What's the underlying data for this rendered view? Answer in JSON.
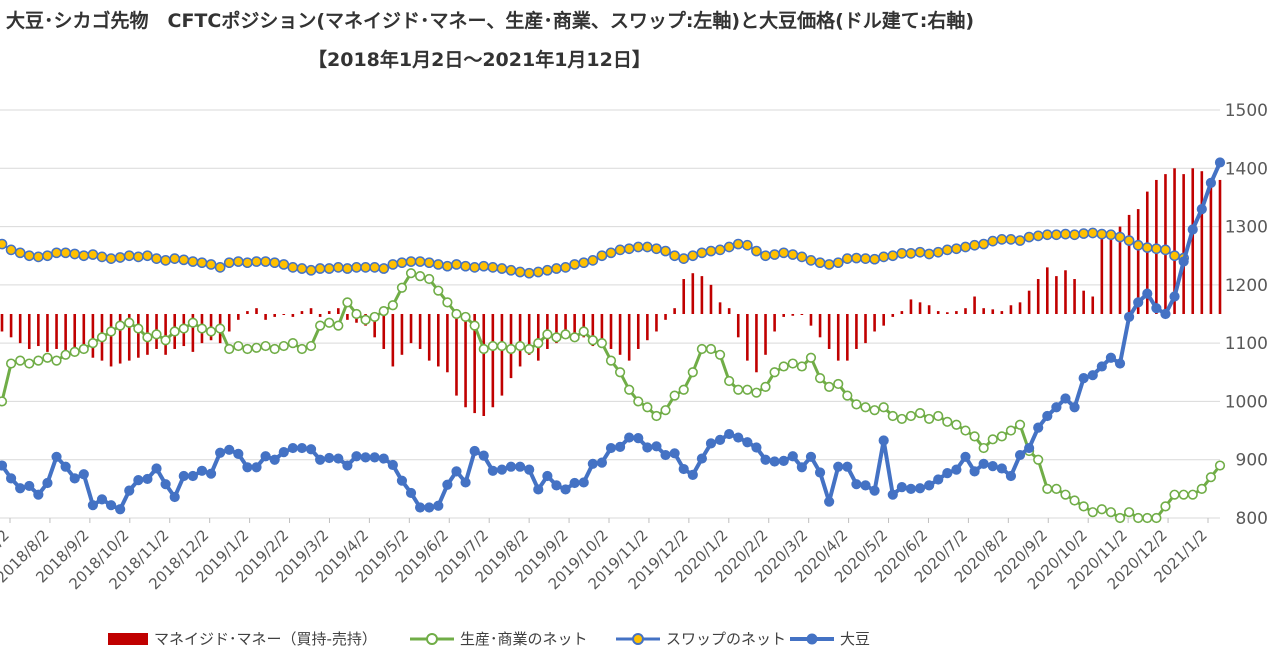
{
  "chart_data": {
    "type": "combo",
    "title": "大豆･シカゴ先物　CFTCポジション(マネイジド･マネー、生産･商業、スワップ:左軸)と大豆価格(ドル建て:右軸)",
    "subtitle": "【2018年1月2日～2021年1月12日】",
    "right_axis": {
      "ylim": [
        800,
        1500
      ],
      "ticks": [
        "800",
        "900",
        "1000",
        "1100",
        "1200",
        "1300",
        "1400",
        "1500"
      ]
    },
    "left_axis": {
      "ylim": [
        -350000,
        350000
      ],
      "note": "left axis labels not visible in crop"
    },
    "x_tick_labels": [
      "2018/7/2",
      "2018/8/2",
      "2018/9/2",
      "2018/10/2",
      "2018/11/2",
      "2018/12/2",
      "2019/1/2",
      "2019/2/2",
      "2019/3/2",
      "2019/4/2",
      "2019/5/2",
      "2019/6/2",
      "2019/7/2",
      "2019/8/2",
      "2019/9/2",
      "2019/10/2",
      "2019/11/2",
      "2019/12/2",
      "2020/1/2",
      "2020/2/2",
      "2020/3/2",
      "2020/4/2",
      "2020/5/2",
      "2020/6/2",
      "2020/7/2",
      "2020/8/2",
      "2020/9/2",
      "2020/10/2",
      "2020/11/2",
      "2020/12/2",
      "2021/1/2"
    ],
    "series": [
      {
        "name": "マネイジド･マネー（買持-売持）",
        "type": "bar",
        "axis": "left",
        "color": "#c00000",
        "values": [
          -30000,
          -40000,
          -50000,
          -60000,
          -55000,
          -65000,
          -60000,
          -70000,
          -65000,
          -60000,
          -75000,
          -80000,
          -90000,
          -85000,
          -80000,
          -75000,
          -70000,
          -60000,
          -70000,
          -60000,
          -55000,
          -65000,
          -50000,
          -45000,
          -50000,
          -30000,
          -10000,
          5000,
          10000,
          -10000,
          -5000,
          0,
          -5000,
          5000,
          10000,
          -5000,
          5000,
          10000,
          -10000,
          -15000,
          -20000,
          -40000,
          -60000,
          -90000,
          -70000,
          -50000,
          -60000,
          -80000,
          -90000,
          -100000,
          -140000,
          -160000,
          -170000,
          -175000,
          -160000,
          -140000,
          -110000,
          -90000,
          -70000,
          -80000,
          -60000,
          -50000,
          -40000,
          -35000,
          -40000,
          -55000,
          -45000,
          -60000,
          -70000,
          -80000,
          -60000,
          -45000,
          -30000,
          -10000,
          10000,
          60000,
          70000,
          65000,
          50000,
          20000,
          10000,
          -40000,
          -80000,
          -100000,
          -70000,
          -30000,
          -5000,
          -3000,
          0,
          -20000,
          -40000,
          -60000,
          -80000,
          -80000,
          -60000,
          -50000,
          -30000,
          -20000,
          -5000,
          5000,
          25000,
          20000,
          15000,
          5000,
          3000,
          5000,
          10000,
          30000,
          10000,
          8000,
          5000,
          15000,
          20000,
          40000,
          60000,
          80000,
          65000,
          75000,
          60000,
          40000,
          30000,
          140000,
          140000,
          150000,
          170000,
          180000,
          210000,
          230000,
          240000,
          250000,
          240000,
          250000,
          245000,
          220000,
          230000,
          220000,
          210000,
          200000,
          205000,
          195000,
          200000,
          190000,
          150000,
          130000
        ]
      },
      {
        "name": "生産･商業のネット",
        "type": "line",
        "axis": "left",
        "color": "#70ad47",
        "values": [
          -150000,
          -85000,
          -80000,
          -85000,
          -80000,
          -75000,
          -80000,
          -70000,
          -65000,
          -60000,
          -50000,
          -40000,
          -30000,
          -20000,
          -15000,
          -25000,
          -40000,
          -35000,
          -45000,
          -30000,
          -25000,
          -15000,
          -25000,
          -30000,
          -25000,
          -60000,
          -55000,
          -60000,
          -58000,
          -55000,
          -60000,
          -55000,
          -50000,
          -60000,
          -55000,
          -20000,
          -15000,
          -20000,
          20000,
          0,
          -10000,
          -5000,
          5000,
          15000,
          45000,
          70000,
          65000,
          60000,
          40000,
          20000,
          0,
          -5000,
          -20000,
          -60000,
          -55000,
          -55000,
          -60000,
          -55000,
          -60000,
          -50000,
          -35000,
          -40000,
          -35000,
          -40000,
          -30000,
          -45000,
          -50000,
          -80000,
          -100000,
          -130000,
          -150000,
          -160000,
          -175000,
          -165000,
          -140000,
          -130000,
          -100000,
          -60000,
          -60000,
          -70000,
          -115000,
          -130000,
          -130000,
          -135000,
          -125000,
          -100000,
          -90000,
          -85000,
          -90000,
          -75000,
          -110000,
          -125000,
          -120000,
          -140000,
          -155000,
          -160000,
          -165000,
          -160000,
          -175000,
          -180000,
          -175000,
          -170000,
          -180000,
          -175000,
          -185000,
          -190000,
          -200000,
          -210000,
          -230000,
          -215000,
          -210000,
          -200000,
          -190000,
          -235000,
          -250000,
          -300000,
          -300000,
          -310000,
          -320000,
          -330000,
          -340000,
          -335000,
          -340000,
          -350000,
          -340000,
          -350000,
          -350000,
          -350000,
          -330000,
          -310000,
          -310000,
          -310000,
          -300000,
          -280000,
          -260000
        ]
      },
      {
        "name": "スワップのネット",
        "type": "line",
        "axis": "left",
        "color": "#ffc000",
        "values": [
          120000,
          110000,
          105000,
          100000,
          98000,
          100000,
          105000,
          105000,
          103000,
          100000,
          102000,
          98000,
          95000,
          97000,
          100000,
          98000,
          100000,
          95000,
          92000,
          95000,
          93000,
          90000,
          88000,
          85000,
          80000,
          88000,
          90000,
          88000,
          90000,
          90000,
          88000,
          85000,
          80000,
          78000,
          75000,
          78000,
          78000,
          80000,
          78000,
          80000,
          80000,
          80000,
          78000,
          85000,
          88000,
          90000,
          90000,
          88000,
          85000,
          82000,
          85000,
          82000,
          80000,
          82000,
          80000,
          78000,
          75000,
          72000,
          70000,
          72000,
          75000,
          78000,
          80000,
          85000,
          88000,
          92000,
          100000,
          105000,
          110000,
          112000,
          115000,
          115000,
          112000,
          108000,
          100000,
          95000,
          100000,
          105000,
          108000,
          110000,
          115000,
          120000,
          118000,
          108000,
          100000,
          102000,
          105000,
          102000,
          98000,
          92000,
          88000,
          85000,
          88000,
          95000,
          96000,
          95000,
          94000,
          98000,
          100000,
          104000,
          104000,
          106000,
          103000,
          106000,
          110000,
          112000,
          115000,
          118000,
          120000,
          125000,
          128000,
          128000,
          126000,
          132000,
          134000,
          136000,
          136000,
          137000,
          136000,
          138000,
          139000,
          137000,
          136000,
          132000,
          126000,
          118000,
          114000,
          112000,
          110000,
          100000,
          96000
        ]
      },
      {
        "name": "大豆",
        "type": "line",
        "axis": "right",
        "color": "#4472c4",
        "values": [
          890,
          868,
          851,
          855,
          840,
          860,
          905,
          888,
          868,
          875,
          822,
          832,
          822,
          815,
          847,
          865,
          867,
          885,
          858,
          836,
          872,
          872,
          881,
          876,
          912,
          917,
          910,
          887,
          887,
          906,
          900,
          913,
          920,
          920,
          918,
          900,
          903,
          902,
          890,
          906,
          904,
          904,
          902,
          891,
          864,
          843,
          818,
          818,
          821,
          857,
          880,
          861,
          915,
          907,
          881,
          883,
          888,
          888,
          883,
          849,
          872,
          856,
          849,
          860,
          861,
          893,
          895,
          920,
          922,
          938,
          937,
          921,
          923,
          908,
          911,
          884,
          874,
          902,
          928,
          934,
          944,
          938,
          930,
          921,
          900,
          897,
          898,
          906,
          887,
          905,
          878,
          828,
          888,
          888,
          858,
          856,
          847,
          933,
          840,
          853,
          850,
          851,
          856,
          866,
          877,
          883,
          905,
          880,
          893,
          889,
          885,
          872,
          908,
          920,
          955,
          975,
          990,
          1005,
          990,
          1040,
          1045,
          1060,
          1075,
          1065,
          1145,
          1170,
          1185,
          1160,
          1150,
          1180,
          1240,
          1295,
          1330,
          1375,
          1410
        ]
      }
    ],
    "legend": [
      "マネイジド･マネー（買持-売持）",
      "生産･商業のネット",
      "スワップのネット",
      "大豆"
    ]
  }
}
